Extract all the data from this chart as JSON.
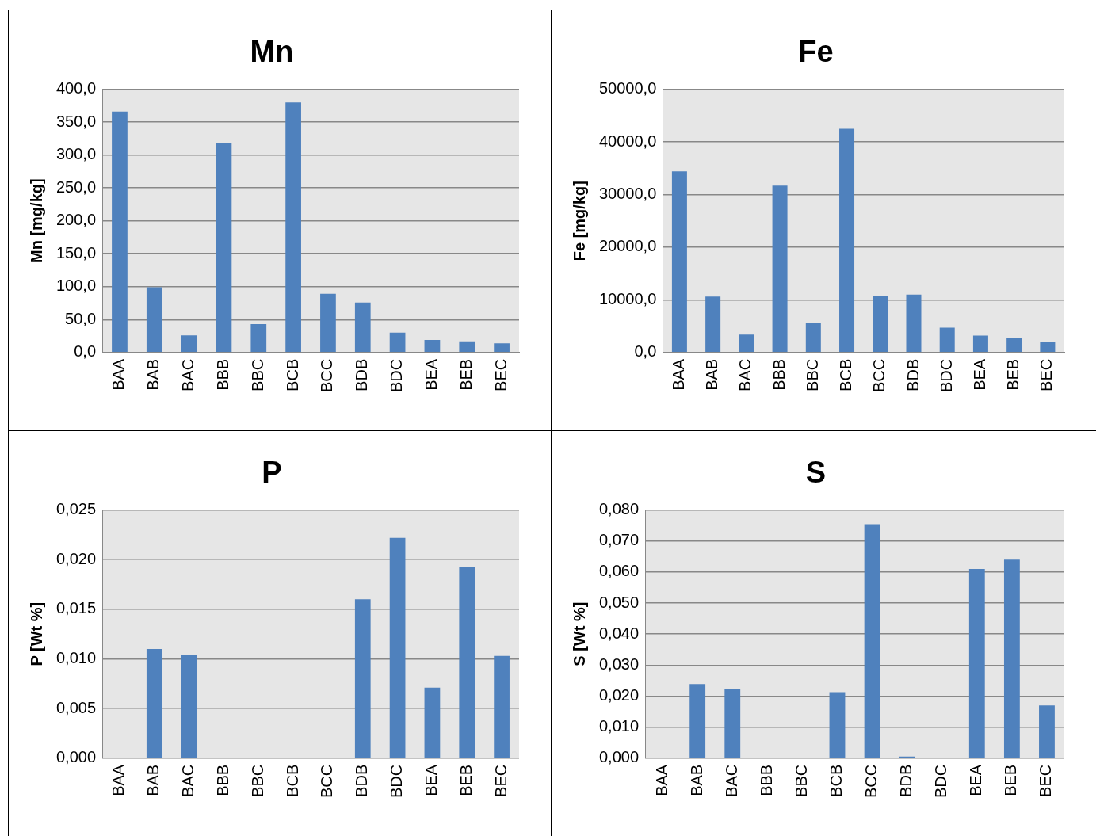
{
  "chart_data": [
    {
      "type": "bar",
      "title": "Mn",
      "ylabel": "Mn [mg/kg]",
      "categories": [
        "BAA",
        "BAB",
        "BAC",
        "BBB",
        "BBC",
        "BCB",
        "BCC",
        "BDB",
        "BDC",
        "BEA",
        "BEB",
        "BEC"
      ],
      "values": [
        366,
        99,
        26,
        318,
        43,
        380,
        89,
        76,
        30,
        19,
        17,
        14
      ],
      "color": "#4f81bd",
      "ylim": [
        0,
        400
      ],
      "yticks": [
        {
          "value": 0,
          "label": "0,0"
        },
        {
          "value": 50,
          "label": "50,0"
        },
        {
          "value": 100,
          "label": "100,0"
        },
        {
          "value": 150,
          "label": "150,0"
        },
        {
          "value": 200,
          "label": "200,0"
        },
        {
          "value": 250,
          "label": "250,0"
        },
        {
          "value": 300,
          "label": "300,0"
        },
        {
          "value": 350,
          "label": "350,0"
        },
        {
          "value": 400,
          "label": "400,0"
        }
      ],
      "grid": "y"
    },
    {
      "type": "bar",
      "title": "Fe",
      "ylabel": "Fe [mg/kg]",
      "categories": [
        "BAA",
        "BAB",
        "BAC",
        "BBB",
        "BBC",
        "BCB",
        "BCC",
        "BDB",
        "BDC",
        "BEA",
        "BEB",
        "BEC"
      ],
      "values": [
        34400,
        10600,
        3400,
        31700,
        5700,
        42500,
        10700,
        11000,
        4700,
        3200,
        2700,
        2000
      ],
      "color": "#4f81bd",
      "ylim": [
        0,
        50000
      ],
      "yticks": [
        {
          "value": 0,
          "label": "0,0"
        },
        {
          "value": 10000,
          "label": "10000,0"
        },
        {
          "value": 20000,
          "label": "20000,0"
        },
        {
          "value": 30000,
          "label": "30000,0"
        },
        {
          "value": 40000,
          "label": "40000,0"
        },
        {
          "value": 50000,
          "label": "50000,0"
        }
      ],
      "grid": "y"
    },
    {
      "type": "bar",
      "title": "P",
      "ylabel": "P [Wt %]",
      "categories": [
        "BAA",
        "BAB",
        "BAC",
        "BBB",
        "BBC",
        "BCB",
        "BCC",
        "BDB",
        "BDC",
        "BEA",
        "BEB",
        "BEC"
      ],
      "values": [
        null,
        0.011,
        0.0104,
        null,
        null,
        null,
        null,
        0.016,
        0.0222,
        0.0071,
        0.0193,
        0.0103
      ],
      "color": "#4f81bd",
      "ylim": [
        0,
        0.025
      ],
      "yticks": [
        {
          "value": 0,
          "label": "0,000"
        },
        {
          "value": 0.005,
          "label": "0,005"
        },
        {
          "value": 0.01,
          "label": "0,010"
        },
        {
          "value": 0.015,
          "label": "0,015"
        },
        {
          "value": 0.02,
          "label": "0,020"
        },
        {
          "value": 0.025,
          "label": "0,025"
        }
      ],
      "grid": "y"
    },
    {
      "type": "bar",
      "title": "S",
      "ylabel": "S [Wt %]",
      "categories": [
        "BAA",
        "BAB",
        "BAC",
        "BBB",
        "BBC",
        "BCB",
        "BCC",
        "BDB",
        "BDC",
        "BEA",
        "BEB",
        "BEC"
      ],
      "values": [
        null,
        0.0239,
        0.0223,
        null,
        null,
        0.0213,
        0.0754,
        0.0005,
        null,
        0.061,
        0.064,
        0.017
      ],
      "color": "#4f81bd",
      "ylim": [
        0,
        0.08
      ],
      "yticks": [
        {
          "value": 0,
          "label": "0,000"
        },
        {
          "value": 0.01,
          "label": "0,010"
        },
        {
          "value": 0.02,
          "label": "0,020"
        },
        {
          "value": 0.03,
          "label": "0,030"
        },
        {
          "value": 0.04,
          "label": "0,040"
        },
        {
          "value": 0.05,
          "label": "0,050"
        },
        {
          "value": 0.06,
          "label": "0,060"
        },
        {
          "value": 0.07,
          "label": "0,070"
        },
        {
          "value": 0.08,
          "label": "0,080"
        }
      ],
      "grid": "y"
    }
  ]
}
